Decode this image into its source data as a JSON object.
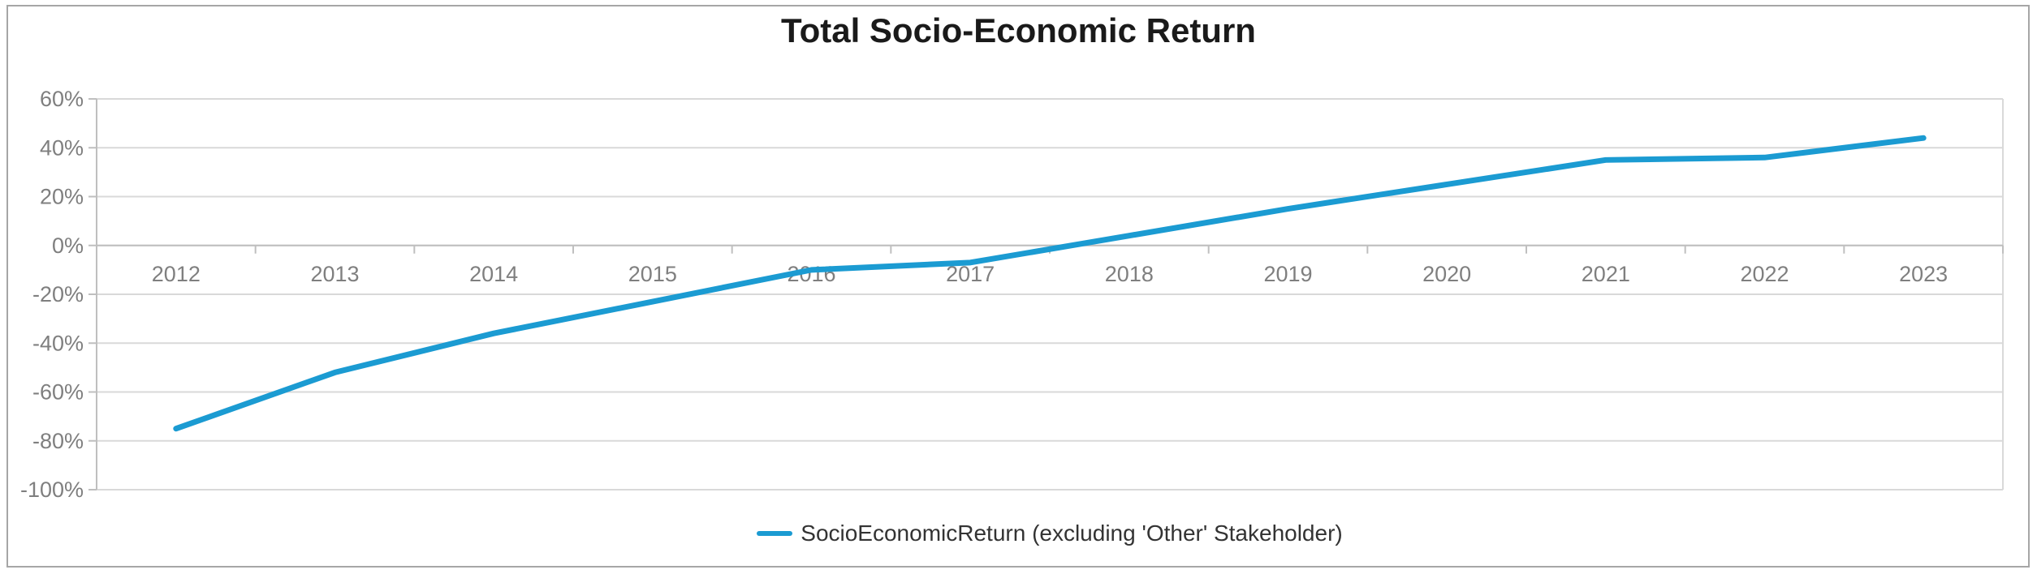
{
  "chart_data": {
    "type": "line",
    "title": "Total Socio-Economic Return",
    "categories": [
      "2012",
      "2013",
      "2014",
      "2015",
      "2016",
      "2017",
      "2018",
      "2019",
      "2020",
      "2021",
      "2022",
      "2023"
    ],
    "series": [
      {
        "name": "SocioEconomicReturn (excluding 'Other' Stakeholder)",
        "values": [
          -75,
          -52,
          -36,
          -23,
          -10,
          -7,
          4,
          15,
          25,
          35,
          36,
          44
        ],
        "color": "#1b9bd2"
      }
    ],
    "xlabel": "",
    "ylabel": "",
    "ylim": [
      -100,
      60
    ],
    "y_axis": {
      "min": -100,
      "max": 60,
      "step": 20,
      "tick_labels": [
        "60%",
        "40%",
        "20%",
        "0%",
        "-20%",
        "-40%",
        "-60%",
        "-80%",
        "-100%"
      ]
    },
    "grid": true,
    "legend_position": "bottom"
  },
  "colors": {
    "line": "#1b9bd2",
    "gridline": "#d9d9d9",
    "axis": "#bfbfbf",
    "axis_label": "#7f7f7f",
    "title": "#1a1a1a",
    "legend_text": "#333333",
    "frame_border": "#a6a6a6",
    "background": "#ffffff"
  }
}
